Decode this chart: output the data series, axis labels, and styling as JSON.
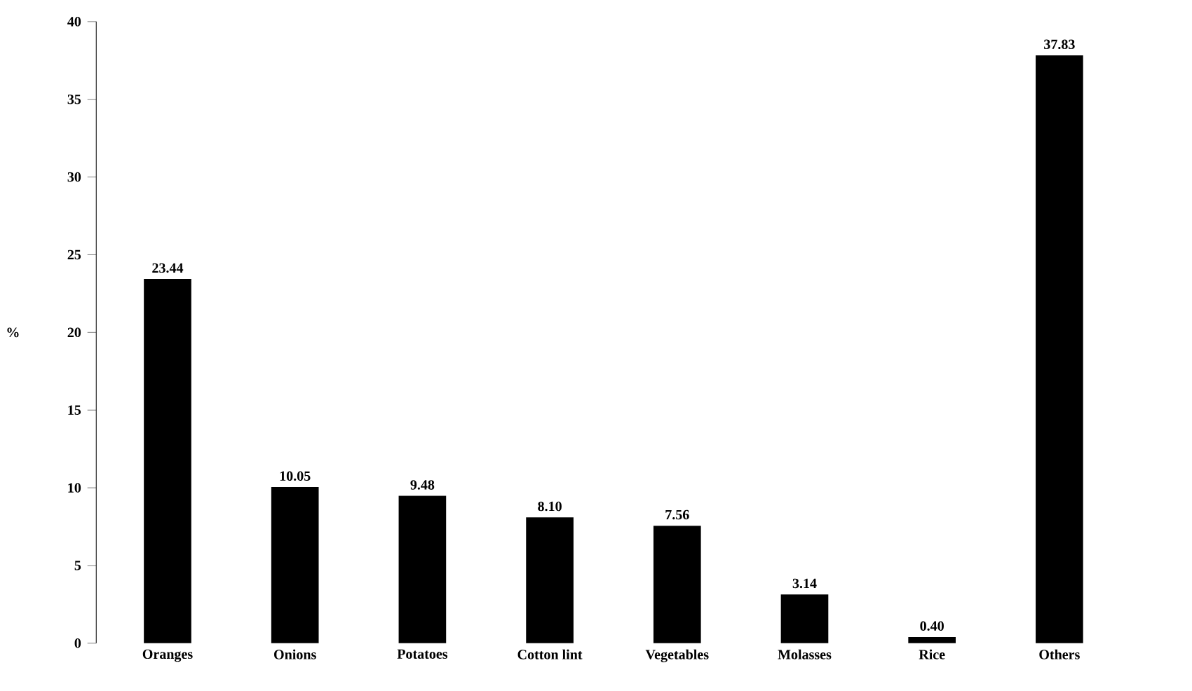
{
  "chart_data": {
    "type": "bar",
    "ylabel": "%",
    "categories": [
      "Oranges",
      "Onions",
      "Potatoes",
      "Cotton lint",
      "Vegetables",
      "Molasses",
      "Rice",
      "Others"
    ],
    "values": [
      23.44,
      10.05,
      9.48,
      8.1,
      7.56,
      3.14,
      0.4,
      37.83
    ],
    "value_labels": [
      "23.44",
      "10.05",
      "9.48",
      "8.10",
      "7.56",
      "3.14",
      "0.40",
      "37.83"
    ],
    "color": "#000000",
    "ylim": [
      0,
      40
    ],
    "yticks": [
      0,
      5,
      10,
      15,
      20,
      25,
      30,
      35,
      40
    ],
    "grid": false
  }
}
